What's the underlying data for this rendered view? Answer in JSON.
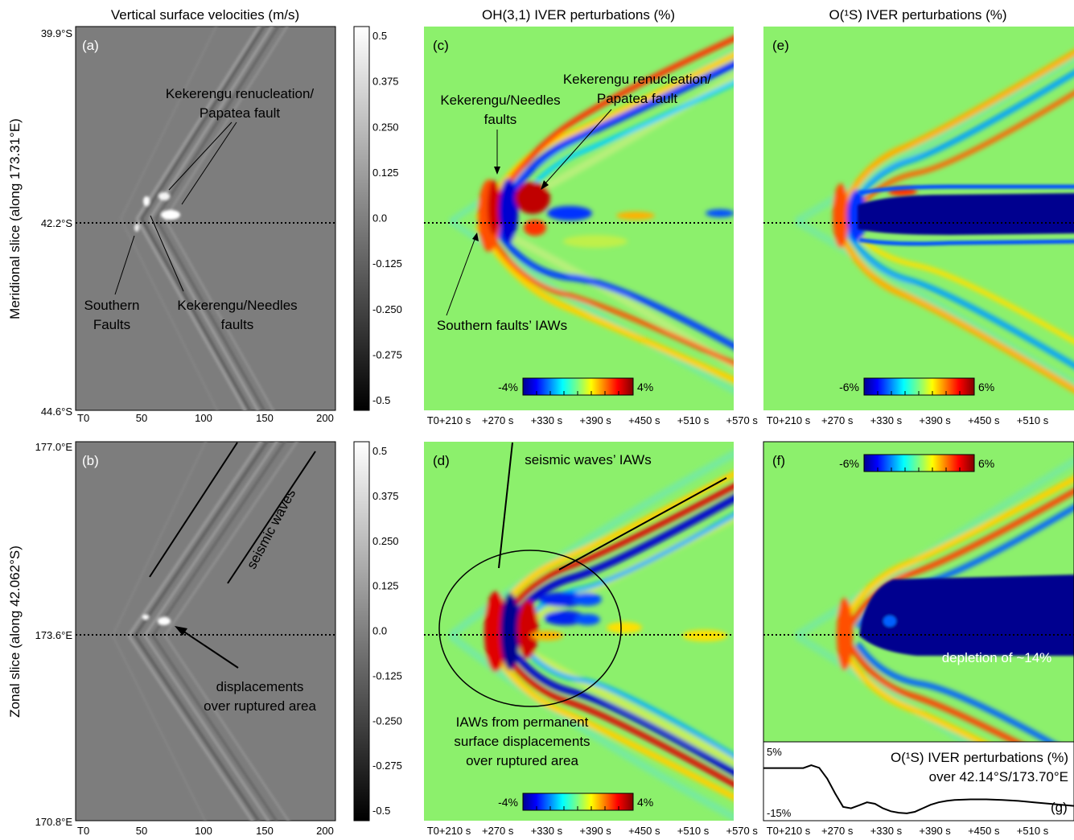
{
  "titles": {
    "col1": "Vertical surface velocities (m/s)",
    "col2": "OH(3,1) IVER perturbations (%)",
    "col3": "O(¹S) IVER perturbations (%)"
  },
  "row_labels": {
    "top": "Meridional slice (along 173.31°E)",
    "bottom": "Zonal slice (along 42.062°S)"
  },
  "panel_letters": [
    "(a)",
    "(b)",
    "(c)",
    "(d)",
    "(e)",
    "(f)",
    "(g)"
  ],
  "axes": {
    "a_y_ticks": [
      "39.9°S",
      "42.2°S",
      "44.6°S"
    ],
    "b_y_ticks": [
      "177.0°E",
      "173.6°E",
      "170.8°E"
    ],
    "left_x_ticks": [
      "T0",
      "50",
      "100",
      "150",
      "200"
    ],
    "mid_x_ticks": [
      "T0+210 s",
      "+270 s",
      "+330 s",
      "+390 s",
      "+450 s",
      "+510 s",
      "+570 s"
    ],
    "right_x_ticks": [
      "T0+210 s",
      "+270 s",
      "+330 s",
      "+390 s",
      "+450 s",
      "+510 s"
    ]
  },
  "grey_colorbar": {
    "ticks": [
      "0.5",
      "0.375",
      "0.250",
      "0.125",
      "0.0",
      "-0.125",
      "-0.250",
      "-0.275",
      "-0.5"
    ]
  },
  "colorbars": {
    "c": [
      "-4%",
      "4%"
    ],
    "d": [
      "-4%",
      "4%"
    ],
    "e": [
      "-6%",
      "6%"
    ],
    "f": [
      "-6%",
      "6%"
    ]
  },
  "annotations": {
    "a_kek_renuc_1": "Kekerengu renucleation/",
    "a_kek_renuc_2": "Papatea fault",
    "a_southern_1": "Southern",
    "a_southern_2": "Faults",
    "a_kek_needles_1": "Kekerengu/Needles",
    "a_kek_needles_2": "faults",
    "c_kek_needles_1": "Kekerengu/Needles",
    "c_kek_needles_2": "faults",
    "c_kek_renuc_1": "Kekerengu renucleation/",
    "c_kek_renuc_2": "Papatea fault",
    "c_southern": "Southern faults’ IAWs",
    "b_seismic": "seismic waves",
    "b_disp_1": "displacements",
    "b_disp_2": "over ruptured area",
    "d_seismic": "seismic waves’ IAWs",
    "d_iaw_1": "IAWs from permanent",
    "d_iaw_2": "surface displacements",
    "d_iaw_3": "over ruptured area",
    "f_depletion": "depletion of ~14%",
    "g_title_1": "O(¹S) IVER perturbations (%)",
    "g_title_2": "over 42.14°S/173.70°E",
    "g_top": "5%",
    "g_bottom": "-15%"
  },
  "colors": {
    "bg_green": "#8cf06c",
    "grey_bg": "#7d7d7d",
    "jet": [
      "#00008f",
      "#0000ff",
      "#0080ff",
      "#00ffff",
      "#80ff80",
      "#ffff00",
      "#ff8000",
      "#ff0000",
      "#800000"
    ]
  },
  "chart_data": [
    {
      "type": "heatmap",
      "panel": "g",
      "title": "O(¹S) IVER perturbations (%) over 42.14°S/173.70°E",
      "x_range_s": [
        210,
        600
      ],
      "ylim": [
        -15,
        5
      ],
      "x": [
        210,
        260,
        270,
        280,
        290,
        300,
        310,
        320,
        330,
        340,
        350,
        360,
        370,
        380,
        390,
        400,
        410,
        420,
        430,
        440,
        450,
        470,
        490,
        510,
        530,
        550,
        570,
        600
      ],
      "y": [
        0.5,
        0.5,
        1.5,
        0.6,
        -3,
        -8,
        -12.5,
        -13,
        -12,
        -11,
        -11.5,
        -13,
        -14,
        -14.5,
        -14.7,
        -14.2,
        -13,
        -11.8,
        -11,
        -10.5,
        -10.2,
        -10,
        -10,
        -10.2,
        -10.5,
        -11,
        -11.5,
        -12.2
      ]
    }
  ]
}
